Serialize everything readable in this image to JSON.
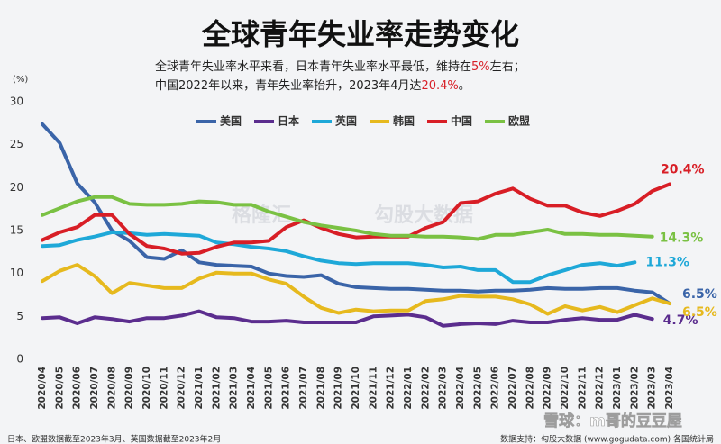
{
  "chart_data": {
    "type": "line",
    "title": "全球青年失业率走势变化",
    "subtitle_lines": [
      [
        "全球青年失业率水平来看，日本青年失业率水平最低，维持在",
        "5%",
        "左右；"
      ],
      [
        "中国2022年以来，青年失业率抬升，2023年4月达",
        "20.4%",
        "。"
      ]
    ],
    "highlight_color": "#d81e26",
    "y_axis_label": "(%)",
    "ylim": [
      0,
      30
    ],
    "yticks": [
      0,
      5,
      10,
      15,
      20,
      25,
      30
    ],
    "grid": false,
    "legend": "top",
    "categories": [
      "2020/04",
      "2020/05",
      "2020/06",
      "2020/07",
      "2020/08",
      "2020/09",
      "2020/10",
      "2020/11",
      "2020/12",
      "2021/01",
      "2021/02",
      "2021/03",
      "2021/04",
      "2021/05",
      "2021/06",
      "2021/07",
      "2021/08",
      "2021/09",
      "2021/10",
      "2021/11",
      "2021/12",
      "2022/01",
      "2022/02",
      "2022/03",
      "2022/04",
      "2022/05",
      "2022/06",
      "2022/07",
      "2022/08",
      "2022/09",
      "2022/10",
      "2022/11",
      "2022/12",
      "2023/01",
      "2023/02",
      "2023/03",
      "2023/04"
    ],
    "series": [
      {
        "name": "美国",
        "color": "#3a64a8",
        "values": [
          27.4,
          25.2,
          20.5,
          18.3,
          15.0,
          13.8,
          11.9,
          11.7,
          12.7,
          11.3,
          11.0,
          10.9,
          10.8,
          10.0,
          9.7,
          9.6,
          9.8,
          8.8,
          8.4,
          8.3,
          8.2,
          8.2,
          8.1,
          8.0,
          8.0,
          7.9,
          8.0,
          8.0,
          8.1,
          8.3,
          8.2,
          8.2,
          8.3,
          8.3,
          8.0,
          7.8,
          6.5
        ],
        "value_labels": [
          null,
          null,
          null,
          null,
          null,
          null,
          null,
          null,
          null,
          null,
          null,
          null,
          null,
          null,
          null,
          null,
          null,
          null,
          null,
          null,
          null,
          null,
          null,
          null,
          null,
          null,
          null,
          null,
          null,
          null,
          null,
          null,
          null,
          null,
          null,
          null,
          "6.5%"
        ]
      },
      {
        "name": "日本",
        "color": "#5b2d8e",
        "values": [
          4.8,
          4.9,
          4.2,
          4.9,
          4.7,
          4.4,
          4.8,
          4.8,
          5.1,
          5.6,
          4.9,
          4.8,
          4.4,
          4.4,
          4.5,
          4.3,
          4.3,
          4.3,
          4.3,
          5.0,
          5.1,
          5.2,
          4.9,
          3.9,
          4.1,
          4.2,
          4.1,
          4.5,
          4.3,
          4.3,
          4.6,
          4.8,
          4.6,
          4.6,
          5.2,
          4.7,
          null
        ],
        "value_labels": [
          null,
          null,
          null,
          null,
          null,
          null,
          null,
          null,
          null,
          null,
          null,
          null,
          null,
          null,
          null,
          null,
          null,
          null,
          null,
          null,
          null,
          null,
          null,
          null,
          null,
          null,
          null,
          null,
          null,
          null,
          null,
          null,
          null,
          null,
          null,
          "4.7%",
          null
        ]
      },
      {
        "name": "英国",
        "color": "#1ea8d8",
        "values": [
          13.2,
          13.3,
          13.9,
          14.3,
          14.8,
          14.7,
          14.5,
          14.6,
          14.5,
          14.4,
          13.6,
          13.4,
          13.1,
          12.9,
          12.6,
          12.0,
          11.5,
          11.2,
          11.1,
          11.2,
          11.2,
          11.2,
          11.0,
          10.7,
          10.8,
          10.4,
          10.4,
          9.0,
          9.0,
          9.8,
          10.4,
          11.0,
          11.2,
          10.9,
          11.3,
          null,
          null
        ],
        "value_labels": [
          null,
          null,
          null,
          null,
          null,
          null,
          null,
          null,
          null,
          null,
          null,
          null,
          null,
          null,
          null,
          null,
          null,
          null,
          null,
          null,
          null,
          null,
          null,
          null,
          null,
          null,
          null,
          null,
          null,
          null,
          null,
          null,
          null,
          null,
          "11.3%",
          null,
          null
        ]
      },
      {
        "name": "韩国",
        "color": "#e6b91e",
        "values": [
          9.1,
          10.3,
          11.0,
          9.7,
          7.7,
          8.9,
          8.6,
          8.3,
          8.3,
          9.4,
          10.1,
          10.0,
          10.0,
          9.3,
          8.8,
          7.3,
          6.0,
          5.4,
          5.8,
          5.6,
          5.7,
          5.7,
          6.8,
          7.0,
          7.4,
          7.3,
          7.3,
          7.0,
          6.4,
          5.3,
          6.2,
          5.7,
          6.1,
          5.5,
          6.3,
          7.1,
          6.5
        ],
        "value_labels": [
          null,
          null,
          null,
          null,
          null,
          null,
          null,
          null,
          null,
          null,
          null,
          null,
          null,
          null,
          null,
          null,
          null,
          null,
          null,
          null,
          null,
          null,
          null,
          null,
          null,
          null,
          null,
          null,
          null,
          null,
          null,
          null,
          null,
          null,
          null,
          null,
          "6.5%"
        ]
      },
      {
        "name": "中国",
        "color": "#d81e26",
        "values": [
          13.9,
          14.8,
          15.4,
          16.8,
          16.8,
          14.6,
          13.2,
          12.9,
          12.3,
          12.4,
          13.1,
          13.6,
          13.6,
          13.8,
          15.4,
          16.2,
          15.3,
          14.6,
          14.2,
          14.3,
          14.3,
          14.3,
          15.3,
          16.0,
          18.2,
          18.4,
          19.3,
          19.9,
          18.7,
          17.9,
          17.9,
          17.1,
          16.7,
          17.3,
          18.1,
          19.6,
          20.4
        ],
        "value_labels": [
          null,
          null,
          null,
          null,
          null,
          null,
          null,
          null,
          null,
          null,
          null,
          null,
          null,
          null,
          null,
          null,
          null,
          null,
          null,
          null,
          null,
          null,
          null,
          null,
          null,
          null,
          null,
          null,
          null,
          null,
          null,
          null,
          null,
          null,
          null,
          null,
          "20.4%"
        ]
      },
      {
        "name": "欧盟",
        "color": "#7ac143",
        "values": [
          16.8,
          17.6,
          18.4,
          18.9,
          18.9,
          18.1,
          18.0,
          18.0,
          18.1,
          18.4,
          18.3,
          18.0,
          18.0,
          17.2,
          16.6,
          16.0,
          15.6,
          15.3,
          15.0,
          14.6,
          14.4,
          14.4,
          14.3,
          14.3,
          14.2,
          14.0,
          14.5,
          14.5,
          14.8,
          15.1,
          14.6,
          14.6,
          14.5,
          14.5,
          14.4,
          14.3,
          null
        ],
        "value_labels": [
          null,
          null,
          null,
          null,
          null,
          null,
          null,
          null,
          null,
          null,
          null,
          null,
          null,
          null,
          null,
          null,
          null,
          null,
          null,
          null,
          null,
          null,
          null,
          null,
          null,
          null,
          null,
          null,
          null,
          null,
          null,
          null,
          null,
          null,
          null,
          "14.3%",
          null
        ]
      }
    ],
    "watermarks": [
      "格隆汇",
      "勾股大数据",
      "雪球：m哥的豆豆屋"
    ],
    "footnote": "日本、欧盟数据截至2023年3月、英国数据截至2023年2月",
    "source": "数据支持：勾股大数据 (www.gogudata.com) 各国统计局"
  }
}
